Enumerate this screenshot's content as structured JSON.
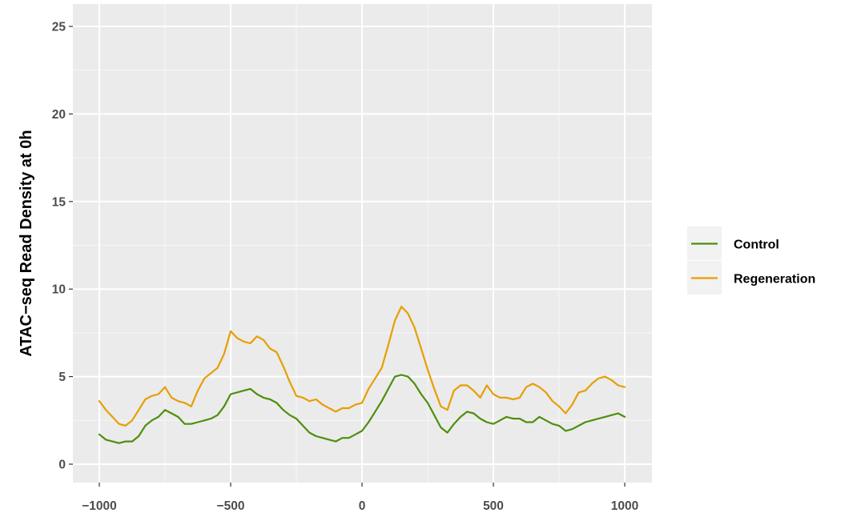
{
  "chart_data": {
    "type": "line",
    "title": "",
    "xlabel": "",
    "ylabel": "ATAC−seq Read Density at 0h",
    "xlim": [
      -1000,
      1000
    ],
    "ylim": [
      0,
      25
    ],
    "x_ticks": [
      -1000,
      -500,
      0,
      500,
      1000
    ],
    "x_tick_labels": [
      "−1000",
      "−500",
      "0",
      "500",
      "1000"
    ],
    "y_ticks": [
      0,
      5,
      10,
      15,
      20,
      25
    ],
    "y_tick_labels": [
      "0",
      "5",
      "10",
      "15",
      "20",
      "25"
    ],
    "grid": true,
    "legend_position": "right",
    "x": [
      -1000,
      -975,
      -950,
      -925,
      -900,
      -875,
      -850,
      -825,
      -800,
      -775,
      -750,
      -725,
      -700,
      -675,
      -650,
      -625,
      -600,
      -575,
      -550,
      -525,
      -500,
      -475,
      -450,
      -425,
      -400,
      -375,
      -350,
      -325,
      -300,
      -275,
      -250,
      -225,
      -200,
      -175,
      -150,
      -125,
      -100,
      -75,
      -50,
      -25,
      0,
      25,
      50,
      75,
      100,
      125,
      150,
      175,
      200,
      225,
      250,
      275,
      300,
      325,
      350,
      375,
      400,
      425,
      450,
      475,
      500,
      525,
      550,
      575,
      600,
      625,
      650,
      675,
      700,
      725,
      750,
      775,
      800,
      825,
      850,
      875,
      900,
      925,
      950,
      975,
      1000
    ],
    "series": [
      {
        "name": "Control",
        "color": "#4d8f0c",
        "values": [
          1.7,
          1.4,
          1.3,
          1.2,
          1.3,
          1.3,
          1.6,
          2.2,
          2.5,
          2.7,
          3.1,
          2.9,
          2.7,
          2.3,
          2.3,
          2.4,
          2.5,
          2.6,
          2.8,
          3.3,
          4.0,
          4.1,
          4.2,
          4.3,
          4.0,
          3.8,
          3.7,
          3.5,
          3.1,
          2.8,
          2.6,
          2.2,
          1.8,
          1.6,
          1.5,
          1.4,
          1.3,
          1.5,
          1.5,
          1.7,
          1.9,
          2.4,
          3.0,
          3.6,
          4.3,
          5.0,
          5.1,
          5.0,
          4.6,
          4.0,
          3.5,
          2.8,
          2.1,
          1.8,
          2.3,
          2.7,
          3.0,
          2.9,
          2.6,
          2.4,
          2.3,
          2.5,
          2.7,
          2.6,
          2.6,
          2.4,
          2.4,
          2.7,
          2.5,
          2.3,
          2.2,
          1.9,
          2.0,
          2.2,
          2.4,
          2.5,
          2.6,
          2.7,
          2.8,
          2.9,
          2.7
        ]
      },
      {
        "name": "Regeneration",
        "color": "#e69f00",
        "values": [
          3.6,
          3.1,
          2.7,
          2.3,
          2.2,
          2.5,
          3.1,
          3.7,
          3.9,
          4.0,
          4.4,
          3.8,
          3.6,
          3.5,
          3.3,
          4.2,
          4.9,
          5.2,
          5.5,
          6.3,
          7.6,
          7.2,
          7.0,
          6.9,
          7.3,
          7.1,
          6.6,
          6.4,
          5.6,
          4.7,
          3.9,
          3.8,
          3.6,
          3.7,
          3.4,
          3.2,
          3.0,
          3.2,
          3.2,
          3.4,
          3.5,
          4.3,
          4.9,
          5.5,
          6.8,
          8.2,
          9.0,
          8.6,
          7.8,
          6.6,
          5.4,
          4.3,
          3.3,
          3.1,
          4.2,
          4.5,
          4.5,
          4.2,
          3.8,
          4.5,
          4.0,
          3.8,
          3.8,
          3.7,
          3.8,
          4.4,
          4.6,
          4.4,
          4.1,
          3.6,
          3.3,
          2.9,
          3.4,
          4.1,
          4.2,
          4.6,
          4.9,
          5.0,
          4.8,
          4.5,
          4.4
        ]
      }
    ]
  }
}
